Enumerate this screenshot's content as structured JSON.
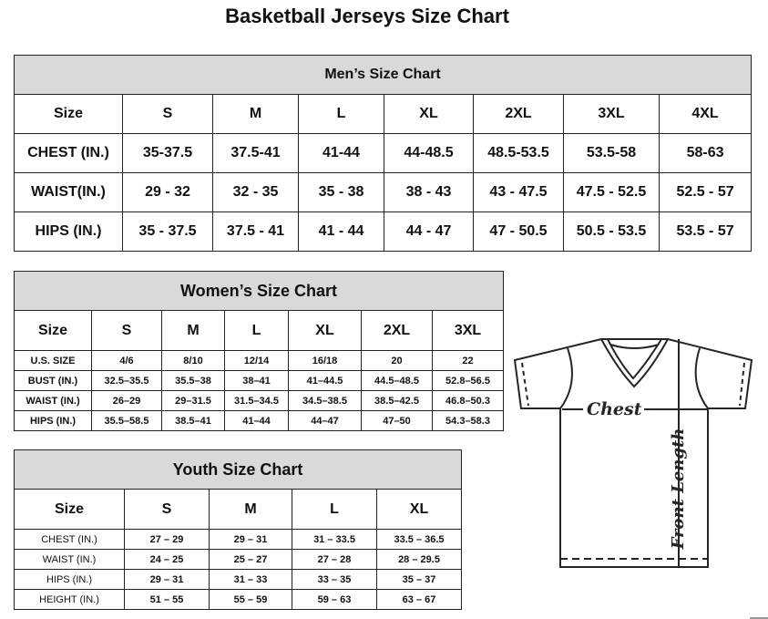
{
  "title": "Basketball Jerseys Size Chart",
  "mens": {
    "heading": "Men’s Size Chart",
    "rows": [
      [
        "Size",
        "S",
        "M",
        "L",
        "XL",
        "2XL",
        "3XL",
        "4XL"
      ],
      [
        "CHEST (IN.)",
        "35-37.5",
        "37.5-41",
        "41-44",
        "44-48.5",
        "48.5-53.5",
        "53.5-58",
        "58-63"
      ],
      [
        "WAIST(IN.)",
        "29 - 32",
        "32 - 35",
        "35 - 38",
        "38 - 43",
        "43 - 47.5",
        "47.5 - 52.5",
        "52.5 - 57"
      ],
      [
        "HIPS (IN.)",
        "35 - 37.5",
        "37.5 - 41",
        "41 - 44",
        "44 - 47",
        "47 - 50.5",
        "50.5 - 53.5",
        "53.5 - 57"
      ]
    ]
  },
  "womens": {
    "heading": "Women’s Size Chart",
    "rows": [
      [
        "Size",
        "S",
        "M",
        "L",
        "XL",
        "2XL",
        "3XL"
      ],
      [
        "U.S.  SIZE",
        "4/6",
        "8/10",
        "12/14",
        "16/18",
        "20",
        "22"
      ],
      [
        "BUST  (IN.)",
        "32.5–35.5",
        "35.5–38",
        "38–41",
        "41–44.5",
        "44.5–48.5",
        "52.8–56.5"
      ],
      [
        "WAIST  (IN.)",
        "26–29",
        "29–31.5",
        "31.5–34.5",
        "34.5–38.5",
        "38.5–42.5",
        "46.8–50.3"
      ],
      [
        "HIPS  (IN.)",
        "35.5–58.5",
        "38.5–41",
        "41–44",
        "44–47",
        "47–50",
        "54.3–58.3"
      ]
    ]
  },
  "youth": {
    "heading": "Youth Size Chart",
    "rows": [
      [
        "Size",
        "S",
        "M",
        "L",
        "XL"
      ],
      [
        "CHEST  (IN.)",
        "27  –  29",
        "29  –  31",
        "31  –  33.5",
        "33.5  –  36.5"
      ],
      [
        "WAIST  (IN.)",
        "24  –  25",
        "25  –  27",
        "27  –  28",
        "28  –  29.5"
      ],
      [
        "HIPS  (IN.)",
        "29  –  31",
        "31  –  33",
        "33  –  35",
        "35  –  37"
      ],
      [
        "HEIGHT  (IN.)",
        "51  –  55",
        "55  –  59",
        "59  –  63",
        "63  –  67"
      ]
    ]
  },
  "diagram": {
    "chest_label": "Chest",
    "length_label": "Front Length"
  }
}
